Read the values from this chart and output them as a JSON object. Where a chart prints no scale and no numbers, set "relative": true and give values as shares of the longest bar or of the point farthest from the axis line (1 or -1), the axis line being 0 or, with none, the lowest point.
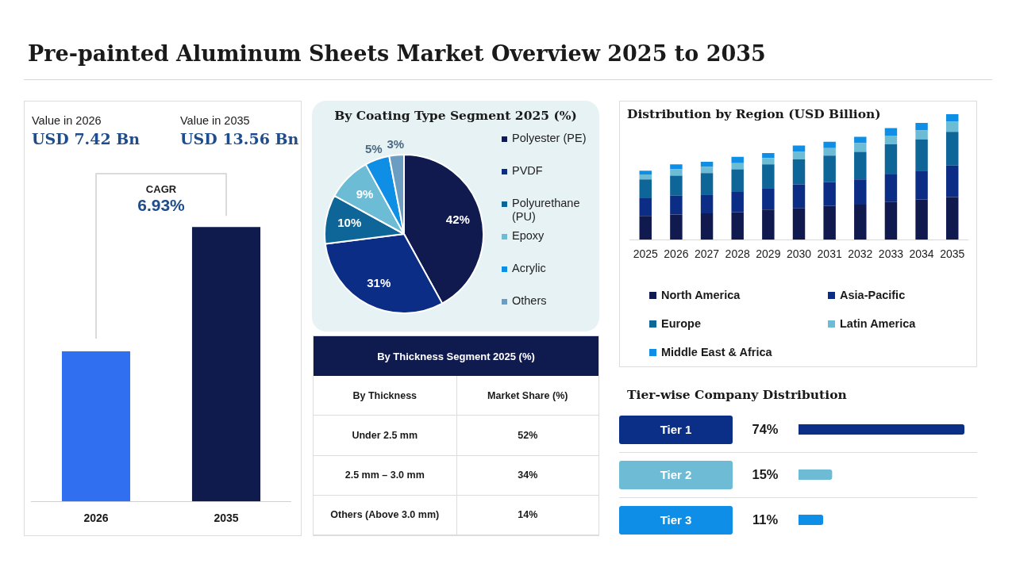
{
  "chart_data": [
    {
      "type": "other",
      "title": "Pre-painted Aluminum Sheets Market Overview 2025 to 2035"
    },
    {
      "type": "bar",
      "categories": [
        "2026",
        "2035"
      ],
      "values": [
        7.42,
        13.56
      ],
      "colors": [
        "#2f6ff0",
        "#0f1a4d"
      ],
      "value_labels": [
        "USD 7.42 Bn",
        "USD 13.56 Bn"
      ],
      "annotations": [
        "Value in 2026",
        "Value in 2035",
        "CAGR",
        "6.93%"
      ],
      "tick_labels": "x"
    },
    {
      "type": "pie",
      "title": "By Coating Type Segment 2025 (%)",
      "categories": [
        "Polyester (PE)",
        "PVDF",
        "Polyurethane (PU)",
        "Epoxy",
        "Acrylic",
        "Others"
      ],
      "values": [
        42,
        31,
        10,
        9,
        5,
        3
      ],
      "colors": [
        "#111a4e",
        "#0c2d85",
        "#0e6597",
        "#6cbcd6",
        "#0f8ee6",
        "#6b9cc2"
      ],
      "value_labels": [
        "42%",
        "31%",
        "10%",
        "9%",
        "5%",
        "3%"
      ],
      "legend": "right"
    },
    {
      "type": "bar",
      "title": "Distribution by Region (USD Billion)",
      "categories": [
        "2025",
        "2026",
        "2027",
        "2028",
        "2029",
        "2030",
        "2031",
        "2032",
        "2033",
        "2034",
        "2035"
      ],
      "stacked": true,
      "relative": true,
      "legend": "bottom",
      "series": [
        {
          "name": "North America",
          "color": "#111a4e",
          "values": [
            0.19,
            0.2,
            0.21,
            0.22,
            0.24,
            0.25,
            0.27,
            0.28,
            0.3,
            0.32,
            0.34
          ]
        },
        {
          "name": "Asia-Pacific",
          "color": "#0c2d85",
          "values": [
            0.14,
            0.15,
            0.15,
            0.16,
            0.17,
            0.19,
            0.19,
            0.2,
            0.22,
            0.23,
            0.25
          ]
        },
        {
          "name": "Europe",
          "color": "#0e6597",
          "values": [
            0.15,
            0.16,
            0.17,
            0.18,
            0.19,
            0.2,
            0.21,
            0.22,
            0.24,
            0.25,
            0.27
          ]
        },
        {
          "name": "Latin America",
          "color": "#6cbcd6",
          "values": [
            0.04,
            0.05,
            0.05,
            0.05,
            0.05,
            0.06,
            0.06,
            0.07,
            0.07,
            0.07,
            0.08
          ]
        },
        {
          "name": "Middle East & Africa",
          "color": "#0f8ee6",
          "values": [
            0.03,
            0.04,
            0.04,
            0.05,
            0.04,
            0.05,
            0.05,
            0.05,
            0.06,
            0.06,
            0.06
          ]
        }
      ]
    },
    {
      "type": "other",
      "title": "By Thickness Segment 2025 (%)",
      "categories": [
        "Under 2.5 mm",
        "2.5 mm – 3.0 mm",
        "Others (Above 3.0 mm)"
      ],
      "value_labels": [
        "52%",
        "34%",
        "14%"
      ],
      "annotations": [
        "By Thickness",
        "Market Share (%)"
      ]
    },
    {
      "type": "bar",
      "orientation": "horizontal",
      "title": "Tier-wise Company Distribution",
      "categories": [
        "Tier 1",
        "Tier 2",
        "Tier 3"
      ],
      "values": [
        74,
        15,
        11
      ],
      "colors": [
        "#0b2f86",
        "#6dbbd5",
        "#0f8ee8"
      ],
      "value_labels": [
        "74%",
        "15%",
        "11%"
      ],
      "tick_labels": "y"
    }
  ]
}
